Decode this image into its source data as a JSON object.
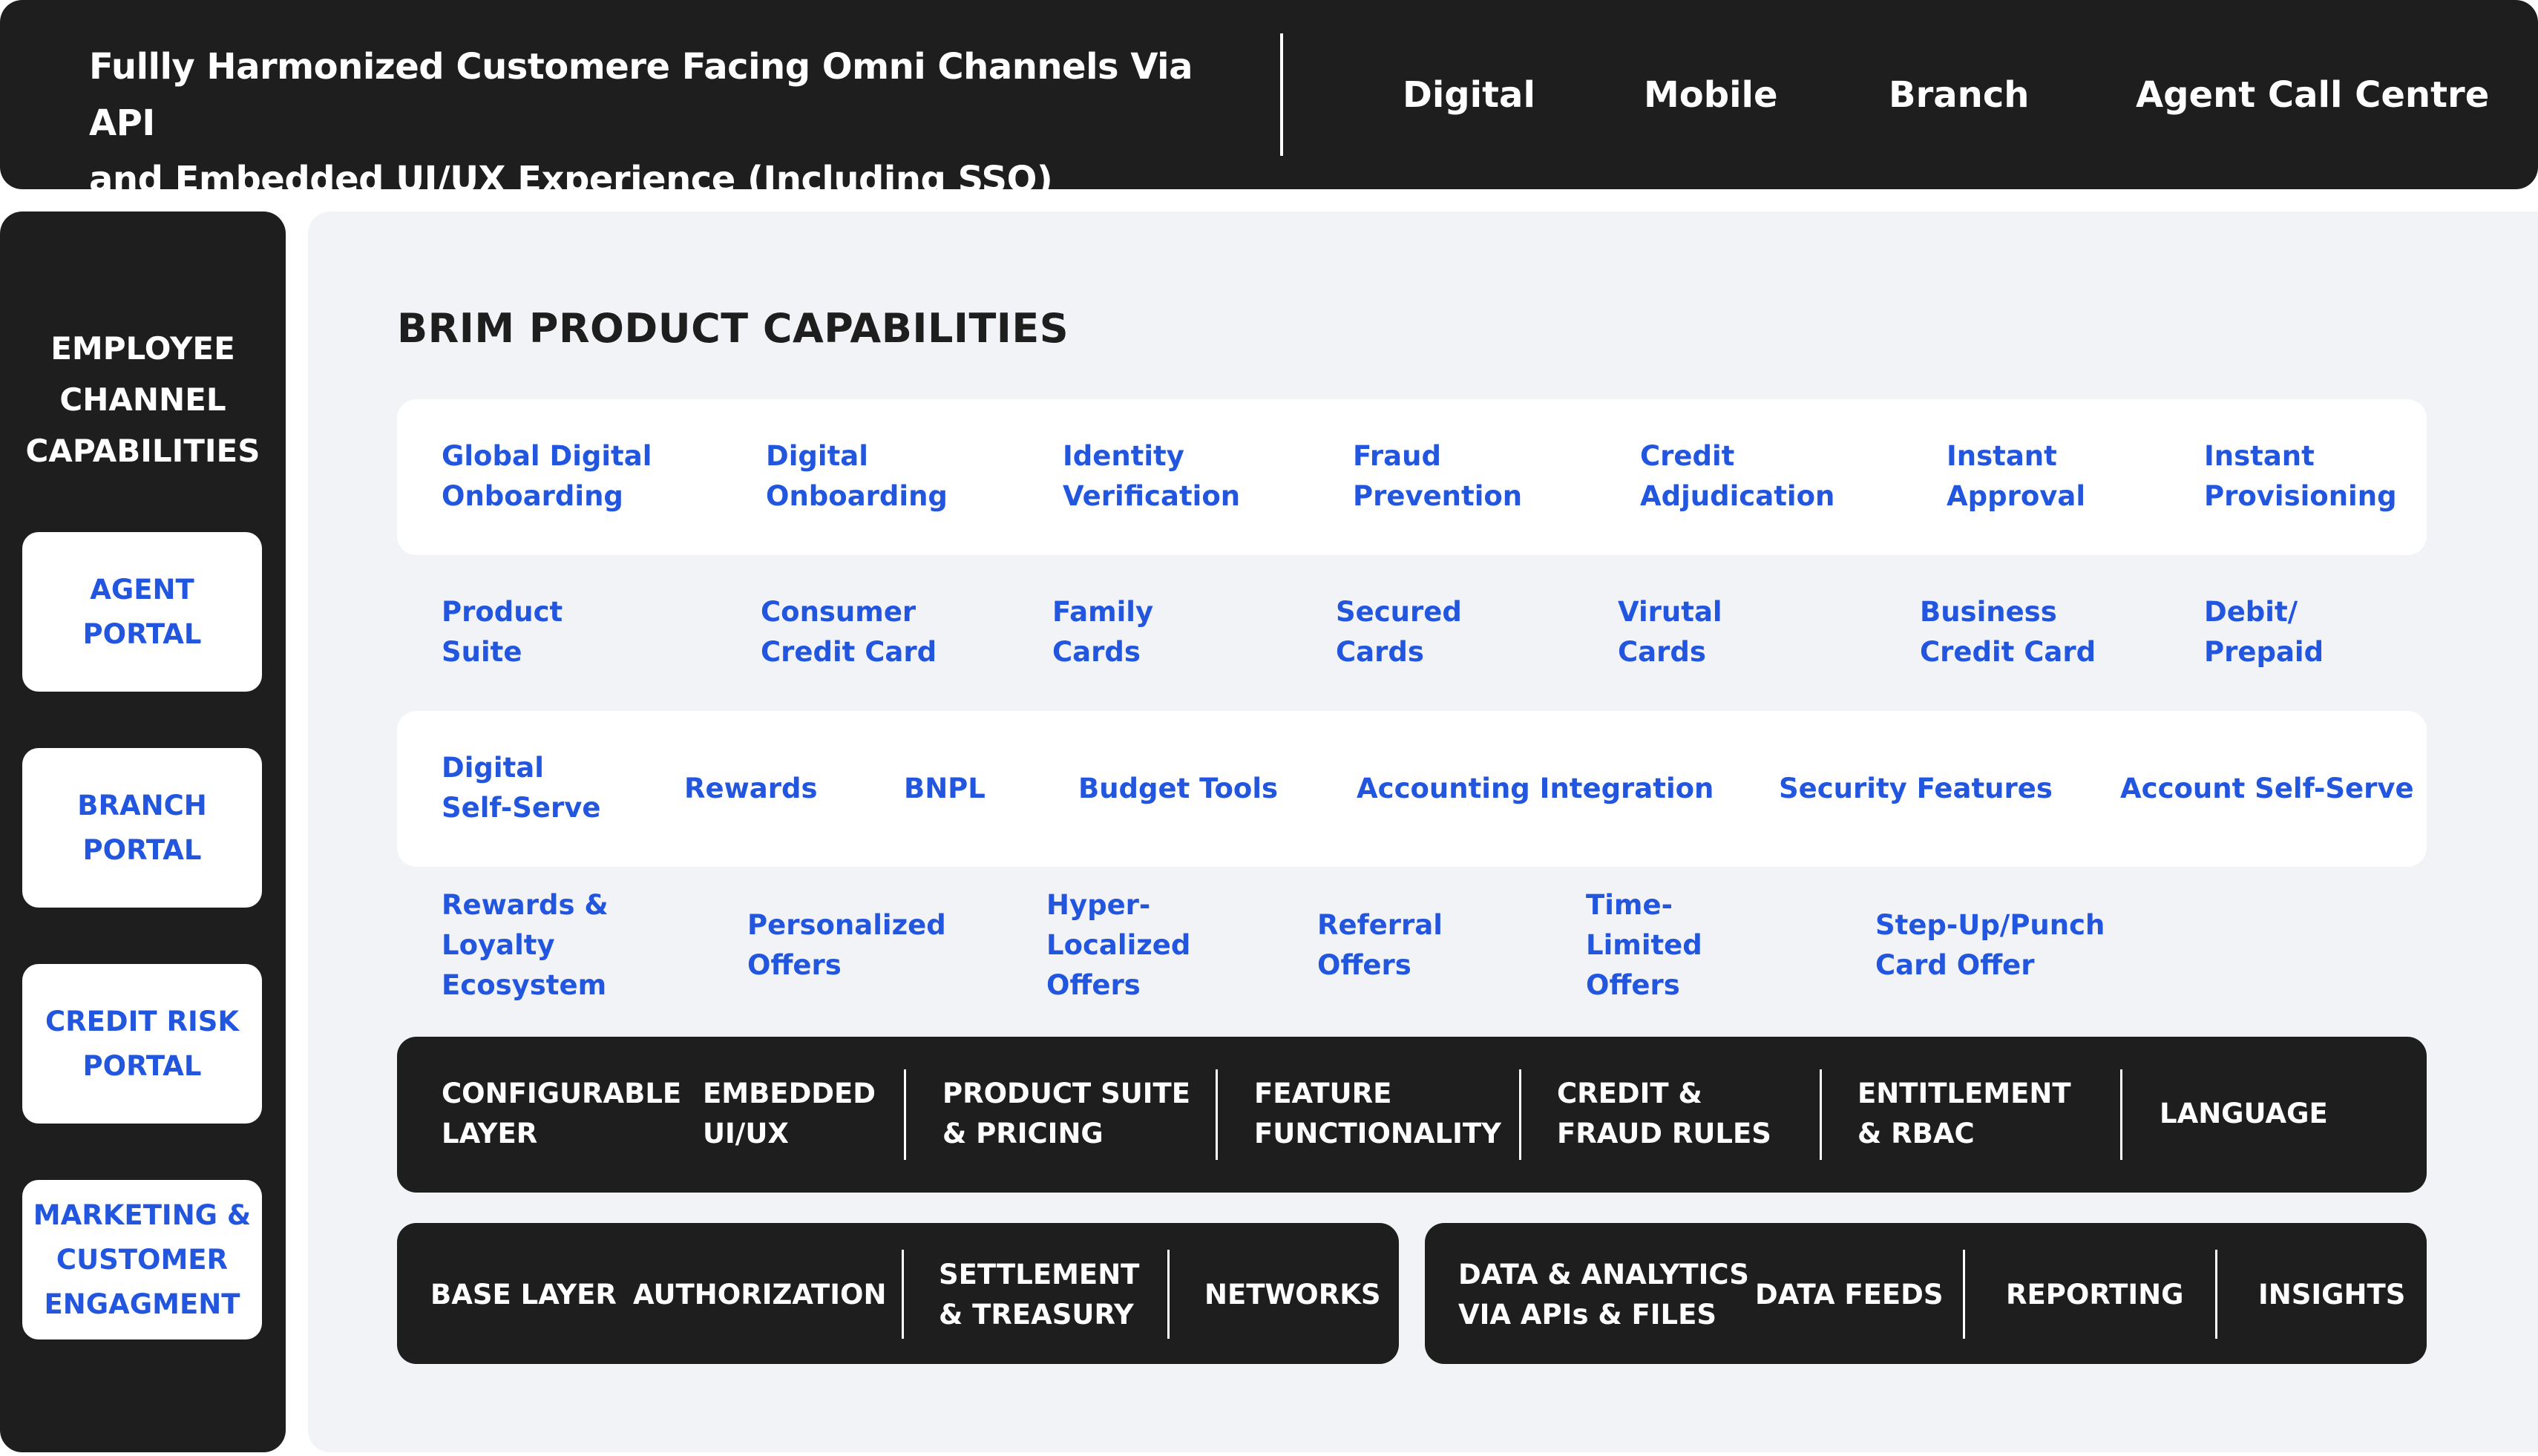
{
  "header": {
    "title": "Fullly Harmonized Customere Facing Omni Channels Via API\nand Embedded UI/UX Experience (Including SSO)",
    "channels": [
      "Digital",
      "Mobile",
      "Branch",
      "Agent Call Centre"
    ]
  },
  "employee_panel": {
    "title": "EMPLOYEE\nCHANNEL\nCAPABILITIES",
    "portals": [
      "AGENT\nPORTAL",
      "BRANCH\nPORTAL",
      "CREDIT RISK\nPORTAL",
      "MARKETING &\nCUSTOMER\nENGAGMENT"
    ]
  },
  "product": {
    "title": "BRIM PRODUCT CAPABILITIES",
    "rows": [
      [
        "Global Digital\nOnboarding",
        "Digital\nOnboarding",
        "Identity\nVerification",
        "Fraud\nPrevention",
        "Credit\nAdjudication",
        "Instant\nApproval",
        "Instant\nProvisioning"
      ],
      [
        "Product\nSuite",
        "Consumer\nCredit Card",
        "Family\nCards",
        "Secured\nCards",
        "Virutal\nCards",
        "Business\nCredit Card",
        "Debit/\nPrepaid"
      ],
      [
        "Digital\nSelf-Serve",
        "Rewards",
        "BNPL",
        "Budget Tools",
        "Accounting Integration",
        "Security Features",
        "Account Self-Serve"
      ],
      [
        "Rewards &\nLoyalty\nEcosystem",
        "Personalized\nOffers",
        "Hyper-\nLocalized\nOffers",
        "Referral\nOffers",
        "Time-\nLimited\nOffers",
        "Step-Up/Punch\nCard Offer"
      ]
    ]
  },
  "configurable_layer": {
    "labels": [
      "CONFIGURABLE\nLAYER",
      "EMBEDDED\nUI/UX",
      "PRODUCT SUITE\n& PRICING",
      "FEATURE\nFUNCTIONALITY",
      "CREDIT &\nFRAUD RULES",
      "ENTITLEMENT\n& RBAC",
      "LANGUAGE"
    ]
  },
  "base_layer": {
    "labels": [
      "BASE LAYER",
      "AUTHORIZATION",
      "SETTLEMENT\n& TREASURY",
      "NETWORKS"
    ]
  },
  "data_layer": {
    "labels": [
      "DATA & ANALYTICS\nVIA APIs & FILES",
      "DATA FEEDS",
      "REPORTING",
      "INSIGHTS"
    ]
  },
  "colors": {
    "dark": "#1e1e1e",
    "accent_blue": "#2356de",
    "panel_bg": "#f1f3f7",
    "white": "#ffffff"
  }
}
